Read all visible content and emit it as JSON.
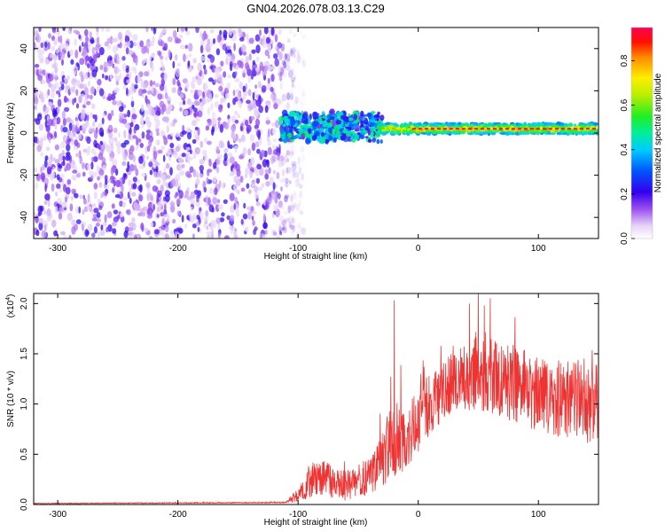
{
  "title": "GN04.2026.078.03.13.C29",
  "chart_data": [
    {
      "type": "heatmap",
      "name": "spectrogram",
      "xlabel": "Height of straight line (km)",
      "ylabel": "Frequency (Hz)",
      "xlim": [
        -320,
        150
      ],
      "ylim": [
        -50,
        50
      ],
      "xticks": [
        -300,
        -200,
        -100,
        0,
        100
      ],
      "yticks": [
        -40,
        -20,
        0,
        20,
        40
      ],
      "colorbar": {
        "label": "Normalized spectral amplitude",
        "range": [
          0.0,
          0.95
        ],
        "ticks": [
          0.0,
          0.2,
          0.4,
          0.6,
          0.8
        ],
        "tick_labels": [
          "0.0",
          "0.2",
          "0.4",
          "0.6",
          "0.8"
        ]
      },
      "regions": [
        {
          "description": "broadband noise",
          "x_range": [
            -320,
            -105
          ],
          "f_range": [
            -50,
            50
          ],
          "amplitude": [
            0.05,
            0.25
          ]
        },
        {
          "description": "transition band",
          "x_range": [
            -115,
            -30
          ],
          "f_center": 3,
          "f_width": 12,
          "amplitude": [
            0.15,
            0.55
          ]
        },
        {
          "description": "steady tone line",
          "x_range": [
            -30,
            150
          ],
          "f_center": 2,
          "f_width": 5,
          "amplitude": [
            0.2,
            0.95
          ]
        }
      ],
      "tone_peak": {
        "frequency": 2,
        "amplitude": 0.95
      }
    },
    {
      "type": "line",
      "name": "snr",
      "xlabel": "Height of straight line (km)",
      "ylabel": "SNR (10 * v/v)",
      "multiplier_label": "(x10",
      "multiplier_exp": "4",
      "xlim": [
        -320,
        150
      ],
      "ylim": [
        0.0,
        2.1
      ],
      "xticks": [
        -300,
        -200,
        -100,
        0,
        100
      ],
      "yticks": [
        0.0,
        0.5,
        1.0,
        1.5,
        2.0
      ],
      "ytick_labels": [
        "0.0",
        "0.5",
        "1.0",
        "1.5",
        "2.0"
      ],
      "series": [
        {
          "name": "SNR",
          "color": "#ee3333",
          "envelope": {
            "x": [
              -320,
              -110,
              -100,
              -90,
              -80,
              -70,
              -60,
              -50,
              -40,
              -30,
              -20,
              -15,
              -10,
              0,
              10,
              20,
              40,
              60,
              80,
              100,
              120,
              140,
              150
            ],
            "mean": [
              0.01,
              0.02,
              0.1,
              0.22,
              0.28,
              0.2,
              0.18,
              0.22,
              0.28,
              0.45,
              0.7,
              0.6,
              0.6,
              0.85,
              1.0,
              1.15,
              1.3,
              1.3,
              1.2,
              1.1,
              1.05,
              1.0,
              1.0
            ],
            "noise": [
              0.003,
              0.005,
              0.06,
              0.12,
              0.14,
              0.12,
              0.12,
              0.12,
              0.14,
              0.2,
              0.35,
              0.28,
              0.25,
              0.25,
              0.25,
              0.25,
              0.28,
              0.3,
              0.3,
              0.28,
              0.3,
              0.3,
              0.3
            ]
          },
          "peaks": [
            {
              "x": -20,
              "y": 2.03
            },
            {
              "x": 50,
              "y": 2.1
            },
            {
              "x": 60,
              "y": 2.05
            }
          ]
        }
      ]
    }
  ]
}
